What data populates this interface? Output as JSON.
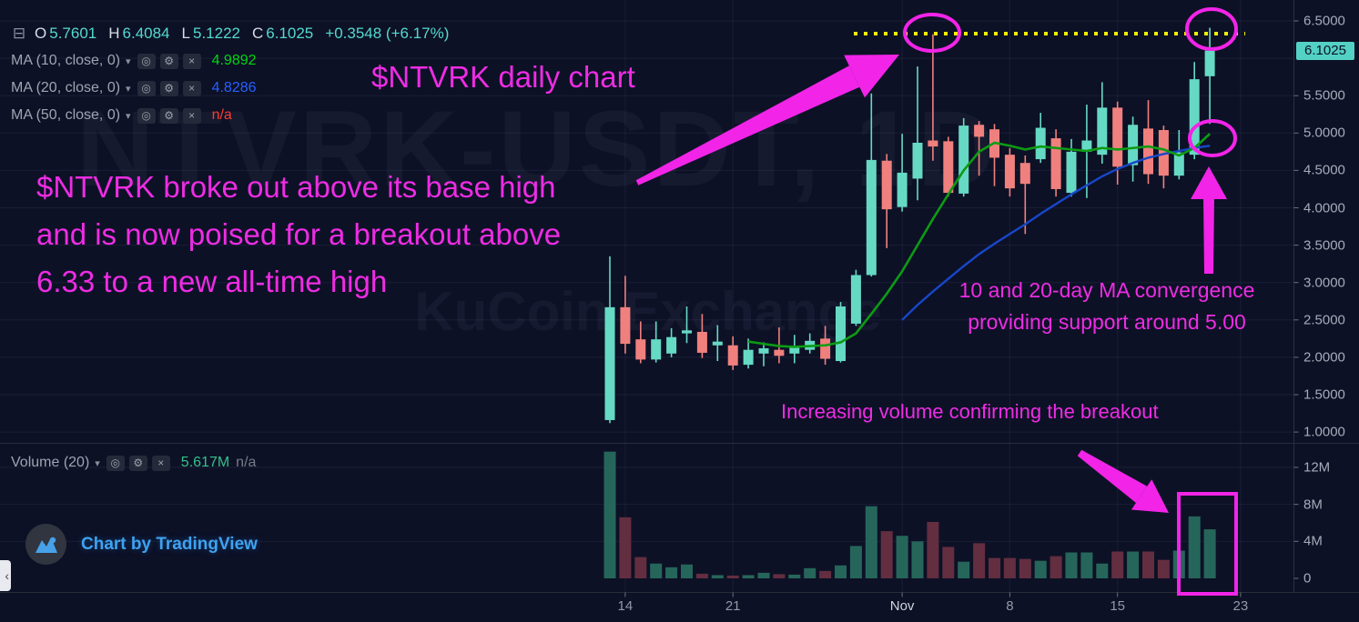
{
  "colors": {
    "background": "#0d1126",
    "up": "#66d9c4",
    "down": "#f0807e",
    "vol_up": "#26665a",
    "vol_down": "#632e40",
    "grid": "rgba(110,125,165,0.13)",
    "axis_border": "#2a2e39",
    "accent_magenta": "#f224e8",
    "resistance_yellow": "#f0f000",
    "ma10_line": "#0c9b14",
    "ma20_line": "#1747c8",
    "last_price_bg": "#53d1c4"
  },
  "watermark": {
    "line1": "NTVRK-USDT, 1D",
    "line2": "KuCoin Exchange"
  },
  "legend": {
    "collapse_icon": "⊟",
    "ohlc": [
      [
        "O",
        "5.7601"
      ],
      [
        "H",
        "6.4084"
      ],
      [
        "L",
        "5.1222"
      ],
      [
        "C",
        "6.1025"
      ]
    ],
    "change": "+0.3548 (+6.17%)",
    "ohlc_value_color": "#53d9cf",
    "icon_glyphs": {
      "visibility": "◎",
      "settings": "⚙",
      "remove": "×"
    },
    "ma_rows": [
      {
        "label": "MA (10, close, 0)",
        "value": "4.9892",
        "value_color": "#00d513"
      },
      {
        "label": "MA (20, close, 0)",
        "value": "4.8286",
        "value_color": "#2760ff"
      },
      {
        "label": "MA (50, close, 0)",
        "value": "n/a",
        "value_color": "#ff3a2f"
      }
    ],
    "volume_row": {
      "label": "Volume (20)",
      "value": "5.617M",
      "value_color": "#35c08a",
      "na": "n/a"
    }
  },
  "annotations": {
    "title": "$NTVRK daily chart",
    "breakout_lines": [
      "$NTVRK broke out above its base high",
      "and is now poised for a breakout above",
      "6.33 to a new all-time high"
    ],
    "ma_note_lines": [
      "10 and 20-day MA convergence",
      "providing support around 5.00"
    ],
    "volume_note": "Increasing volume confirming the breakout"
  },
  "logo": {
    "text": "Chart by TradingView"
  },
  "corner_button_glyph": "‹",
  "axes": {
    "price_ticks": [
      {
        "p": 6.5,
        "label": "6.5000"
      },
      {
        "p": 5.5,
        "label": "5.5000"
      },
      {
        "p": 5.0,
        "label": "5.0000"
      },
      {
        "p": 4.5,
        "label": "4.5000"
      },
      {
        "p": 4.0,
        "label": "4.0000"
      },
      {
        "p": 3.5,
        "label": "3.5000"
      },
      {
        "p": 3.0,
        "label": "3.0000"
      },
      {
        "p": 2.5,
        "label": "2.5000"
      },
      {
        "p": 2.0,
        "label": "2.0000"
      },
      {
        "p": 1.5,
        "label": "1.5000"
      },
      {
        "p": 1.0,
        "label": "1.0000"
      }
    ],
    "last_price": {
      "p": 6.1025,
      "label": "6.1025"
    },
    "volume_ticks": [
      {
        "v": 12,
        "label": "12M"
      },
      {
        "v": 8,
        "label": "8M"
      },
      {
        "v": 4,
        "label": "4M"
      },
      {
        "v": 0,
        "label": "0"
      }
    ],
    "time_ticks": [
      {
        "i": 1,
        "label": "14"
      },
      {
        "i": 8,
        "label": "21"
      },
      {
        "i": 19,
        "label": "Nov",
        "major": true
      },
      {
        "i": 26,
        "label": "8"
      },
      {
        "i": 33,
        "label": "15"
      },
      {
        "i": 41,
        "label": "23"
      }
    ]
  },
  "chart_data": {
    "type": "candlestick",
    "symbol": "NTVRK-USDT",
    "interval": "1D",
    "title": "$NTVRK daily chart",
    "price_axis_range": [
      0.95,
      6.55
    ],
    "volume_axis_range_m": [
      0,
      14
    ],
    "resistance_line": {
      "price": 6.33,
      "style": "dotted"
    },
    "ohlc_legend": {
      "o": 5.7601,
      "h": 6.4084,
      "l": 5.1222,
      "c": 6.1025,
      "change": 0.3548,
      "change_pct": 6.17
    },
    "candles": [
      [
        "Oct 13",
        1.16,
        3.35,
        1.12,
        2.67,
        13.7
      ],
      [
        "Oct 14",
        2.67,
        3.09,
        2.05,
        2.18,
        6.6
      ],
      [
        "Oct 15",
        2.24,
        2.48,
        1.92,
        1.97,
        2.3
      ],
      [
        "Oct 16",
        1.97,
        2.48,
        1.93,
        2.24,
        1.6
      ],
      [
        "Oct 17",
        2.05,
        2.39,
        2.0,
        2.27,
        1.2
      ],
      [
        "Oct 18",
        2.32,
        2.68,
        2.19,
        2.36,
        1.5
      ],
      [
        "Oct 19",
        2.34,
        2.58,
        1.99,
        2.06,
        0.5
      ],
      [
        "Oct 20",
        2.16,
        2.43,
        1.95,
        2.21,
        0.35
      ],
      [
        "Oct 21",
        2.16,
        2.28,
        1.83,
        1.89,
        0.3
      ],
      [
        "Oct 22",
        1.9,
        2.25,
        1.85,
        2.1,
        0.35
      ],
      [
        "Oct 23",
        2.05,
        2.2,
        1.88,
        2.12,
        0.6
      ],
      [
        "Oct 24",
        2.1,
        2.4,
        1.92,
        2.02,
        0.45
      ],
      [
        "Oct 25",
        2.05,
        2.3,
        1.92,
        2.15,
        0.4
      ],
      [
        "Oct 26",
        2.1,
        2.32,
        2.05,
        2.22,
        1.1
      ],
      [
        "Oct 27",
        2.25,
        2.42,
        1.9,
        1.98,
        0.8
      ],
      [
        "Oct 28",
        1.95,
        2.74,
        1.93,
        2.68,
        1.4
      ],
      [
        "Oct 29",
        2.45,
        3.17,
        2.42,
        3.1,
        3.5
      ],
      [
        "Oct 30",
        3.1,
        5.53,
        3.08,
        4.64,
        7.8
      ],
      [
        "Oct 31",
        4.63,
        4.72,
        3.46,
        3.98,
        5.1
      ],
      [
        "Nov 1",
        4.01,
        4.99,
        3.95,
        4.47,
        4.6
      ],
      [
        "Nov 2",
        4.39,
        5.89,
        4.1,
        4.87,
        4.0
      ],
      [
        "Nov 3",
        4.9,
        6.32,
        4.63,
        4.82,
        6.1
      ],
      [
        "Nov 4",
        4.89,
        4.95,
        4.15,
        4.2,
        3.4
      ],
      [
        "Nov 5",
        4.19,
        5.2,
        4.15,
        5.1,
        1.8
      ],
      [
        "Nov 6",
        5.11,
        5.16,
        4.43,
        4.95,
        3.8
      ],
      [
        "Nov 7",
        5.05,
        5.12,
        4.29,
        4.67,
        2.2
      ],
      [
        "Nov 8",
        4.71,
        4.8,
        4.15,
        4.26,
        2.2
      ],
      [
        "Nov 9",
        4.6,
        4.7,
        3.65,
        4.32,
        2.1
      ],
      [
        "Nov 10",
        4.65,
        5.27,
        4.6,
        5.07,
        1.9
      ],
      [
        "Nov 11",
        4.93,
        5.05,
        4.15,
        4.25,
        2.4
      ],
      [
        "Nov 12",
        4.2,
        4.92,
        4.15,
        4.75,
        2.8
      ],
      [
        "Nov 13",
        4.75,
        5.38,
        4.13,
        4.9,
        2.8
      ],
      [
        "Nov 14",
        4.71,
        5.68,
        4.59,
        5.34,
        1.6
      ],
      [
        "Nov 15",
        5.34,
        5.42,
        4.31,
        4.55,
        2.9
      ],
      [
        "Nov 16",
        4.57,
        5.22,
        4.35,
        5.11,
        2.9
      ],
      [
        "Nov 17",
        5.06,
        5.44,
        4.32,
        4.45,
        2.9
      ],
      [
        "Nov 18",
        5.04,
        5.1,
        4.26,
        4.43,
        2.0
      ],
      [
        "Nov 19",
        4.43,
        5.04,
        4.38,
        4.74,
        3.0
      ],
      [
        "Nov 20",
        4.71,
        5.95,
        4.65,
        5.72,
        6.7
      ],
      [
        "Nov 21",
        5.7601,
        6.4084,
        5.1222,
        6.1025,
        5.3
      ]
    ],
    "ma10_points": [
      [
        9,
        2.21
      ],
      [
        10,
        2.18
      ],
      [
        11,
        2.15
      ],
      [
        12,
        2.14
      ],
      [
        13,
        2.15
      ],
      [
        14,
        2.16
      ],
      [
        15,
        2.2
      ],
      [
        16,
        2.32
      ],
      [
        17,
        2.58
      ],
      [
        18,
        2.85
      ],
      [
        19,
        3.15
      ],
      [
        20,
        3.5
      ],
      [
        21,
        3.85
      ],
      [
        22,
        4.18
      ],
      [
        23,
        4.5
      ],
      [
        24,
        4.75
      ],
      [
        25,
        4.87
      ],
      [
        26,
        4.83
      ],
      [
        27,
        4.78
      ],
      [
        28,
        4.82
      ],
      [
        29,
        4.8
      ],
      [
        30,
        4.78
      ],
      [
        31,
        4.76
      ],
      [
        32,
        4.8
      ],
      [
        33,
        4.78
      ],
      [
        34,
        4.8
      ],
      [
        35,
        4.82
      ],
      [
        36,
        4.78
      ],
      [
        37,
        4.7
      ],
      [
        38,
        4.8
      ],
      [
        39,
        4.99
      ]
    ],
    "ma20_points": [
      [
        19,
        2.5
      ],
      [
        20,
        2.7
      ],
      [
        21,
        2.88
      ],
      [
        22,
        3.05
      ],
      [
        23,
        3.22
      ],
      [
        24,
        3.38
      ],
      [
        25,
        3.52
      ],
      [
        26,
        3.65
      ],
      [
        27,
        3.78
      ],
      [
        28,
        3.92
      ],
      [
        29,
        4.05
      ],
      [
        30,
        4.18
      ],
      [
        31,
        4.3
      ],
      [
        32,
        4.42
      ],
      [
        33,
        4.52
      ],
      [
        34,
        4.6
      ],
      [
        35,
        4.67
      ],
      [
        36,
        4.72
      ],
      [
        37,
        4.76
      ],
      [
        38,
        4.8
      ],
      [
        39,
        4.83
      ]
    ]
  }
}
